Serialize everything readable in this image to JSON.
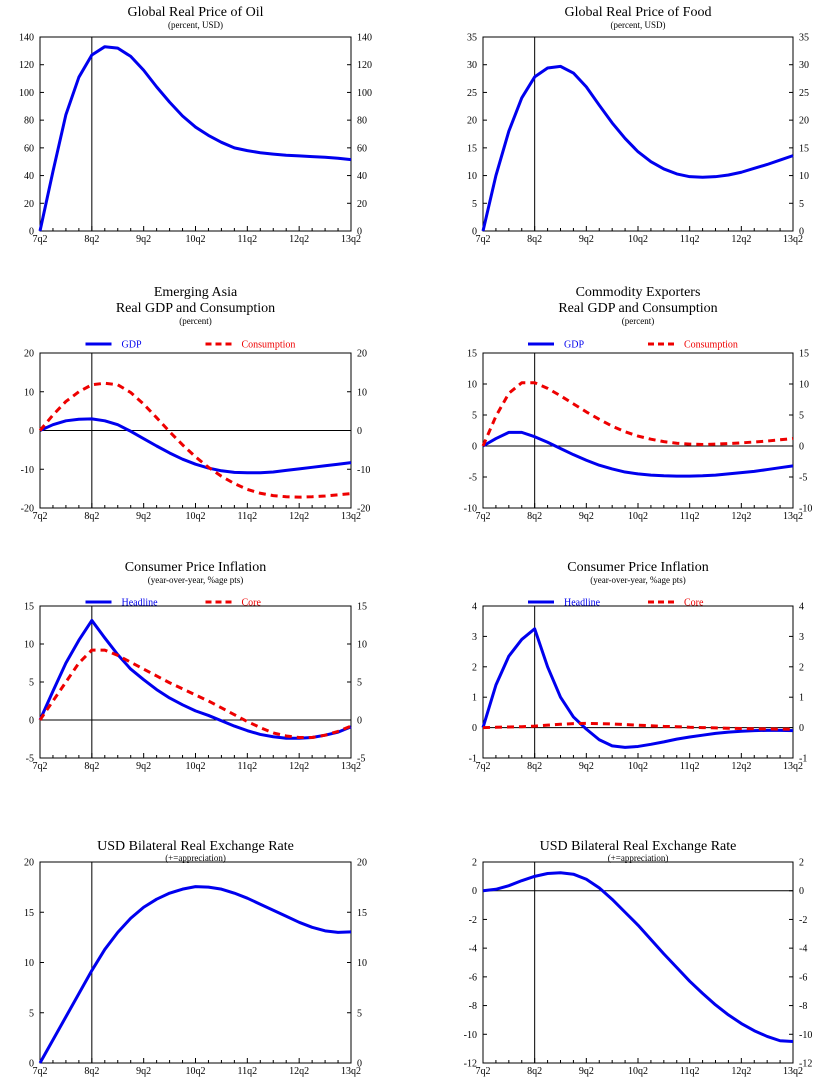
{
  "chart_data": [
    {
      "type": "line",
      "title_lines": [
        "Global Real Price of Oil"
      ],
      "subtitle": "(percent, USD)",
      "ylim": [
        0,
        140
      ],
      "yticks": [
        0,
        20,
        40,
        60,
        80,
        100,
        120,
        140
      ],
      "ytick_labels": [
        "0",
        "20",
        "40",
        "60",
        "80",
        "100",
        "120",
        "140"
      ],
      "xtick_labels": [
        "7q2",
        "8q2",
        "9q2",
        "10q2",
        "11q2",
        "12q2",
        "13q2"
      ],
      "legend": [],
      "series": [
        {
          "color": "#0000ee",
          "dashed": false,
          "values": [
            0,
            43,
            84,
            111,
            127,
            133,
            132,
            126,
            116,
            104,
            93,
            83,
            75,
            69,
            64,
            60,
            58,
            56.5,
            55.5,
            54.7,
            54.2,
            53.7,
            53.2,
            52.5,
            51.5
          ]
        }
      ]
    },
    {
      "type": "line",
      "title_lines": [
        "Global Real Price of Food"
      ],
      "subtitle": "(percent, USD)",
      "ylim": [
        0,
        35
      ],
      "yticks": [
        0,
        5,
        10,
        15,
        20,
        25,
        30,
        35
      ],
      "ytick_labels": [
        "0",
        "5",
        "10",
        "15",
        "20",
        "25",
        "30",
        "35"
      ],
      "xtick_labels": [
        "7q2",
        "8q2",
        "9q2",
        "10q2",
        "11q2",
        "12q2",
        "13q2"
      ],
      "legend": [],
      "series": [
        {
          "color": "#0000ee",
          "dashed": false,
          "values": [
            0,
            10,
            18,
            24,
            27.8,
            29.4,
            29.7,
            28.5,
            26,
            22.7,
            19.5,
            16.7,
            14.3,
            12.5,
            11.2,
            10.3,
            9.8,
            9.7,
            9.8,
            10.1,
            10.6,
            11.3,
            12,
            12.8,
            13.6
          ]
        }
      ]
    },
    {
      "type": "line",
      "title_lines": [
        "Emerging Asia",
        "Real GDP and Consumption"
      ],
      "subtitle": "(percent)",
      "ylim": [
        -20,
        20
      ],
      "yticks": [
        -20,
        -10,
        0,
        10,
        20
      ],
      "ytick_labels": [
        "-20",
        "-10",
        "0",
        "10",
        "20"
      ],
      "xtick_labels": [
        "7q2",
        "8q2",
        "9q2",
        "10q2",
        "11q2",
        "12q2",
        "13q2"
      ],
      "legend": [
        {
          "label": "GDP",
          "color": "#0000ee",
          "dashed": false
        },
        {
          "label": "Consumption",
          "color": "#ee0000",
          "dashed": true
        }
      ],
      "series": [
        {
          "name": "GDP",
          "color": "#0000ee",
          "dashed": false,
          "values": [
            0,
            1.5,
            2.5,
            2.9,
            3,
            2.5,
            1.5,
            -0.2,
            -2.1,
            -4,
            -5.8,
            -7.4,
            -8.7,
            -9.7,
            -10.4,
            -10.8,
            -10.9,
            -10.9,
            -10.7,
            -10.3,
            -9.9,
            -9.5,
            -9.1,
            -8.7,
            -8.3
          ]
        },
        {
          "name": "Consumption",
          "color": "#ee0000",
          "dashed": true,
          "values": [
            0,
            4,
            7.5,
            10,
            11.8,
            12.2,
            11.8,
            9.8,
            6.8,
            3.3,
            -0.3,
            -3.7,
            -6.8,
            -9.5,
            -11.8,
            -13.7,
            -15.2,
            -16.2,
            -16.8,
            -17.1,
            -17.2,
            -17.1,
            -16.9,
            -16.6,
            -16.3
          ]
        }
      ]
    },
    {
      "type": "line",
      "title_lines": [
        "Commodity Exporters",
        "Real GDP and Consumption"
      ],
      "subtitle": "(percent)",
      "ylim": [
        -10,
        15
      ],
      "yticks": [
        -10,
        -5,
        0,
        5,
        10,
        15
      ],
      "ytick_labels": [
        "-10",
        "-5",
        "0",
        "5",
        "10",
        "15"
      ],
      "xtick_labels": [
        "7q2",
        "8q2",
        "9q2",
        "10q2",
        "11q2",
        "12q2",
        "13q2"
      ],
      "legend": [
        {
          "label": "GDP",
          "color": "#0000ee",
          "dashed": false
        },
        {
          "label": "Consumption",
          "color": "#ee0000",
          "dashed": true
        }
      ],
      "series": [
        {
          "name": "GDP",
          "color": "#0000ee",
          "dashed": false,
          "values": [
            0,
            1.2,
            2.2,
            2.2,
            1.5,
            0.6,
            -0.4,
            -1.4,
            -2.3,
            -3.1,
            -3.7,
            -4.2,
            -4.5,
            -4.7,
            -4.8,
            -4.85,
            -4.85,
            -4.8,
            -4.7,
            -4.5,
            -4.3,
            -4.1,
            -3.8,
            -3.5,
            -3.2
          ]
        },
        {
          "name": "Consumption",
          "color": "#ee0000",
          "dashed": true,
          "values": [
            0,
            4.8,
            8.5,
            10.2,
            10.2,
            9.3,
            8.1,
            6.8,
            5.5,
            4.3,
            3.2,
            2.3,
            1.6,
            1.1,
            0.7,
            0.45,
            0.3,
            0.25,
            0.3,
            0.4,
            0.5,
            0.65,
            0.8,
            1.0,
            1.2
          ]
        }
      ]
    },
    {
      "type": "line",
      "title_lines": [
        "Consumer Price Inflation"
      ],
      "subtitle": "(year-over-year, %age pts)",
      "ylim": [
        -5,
        15
      ],
      "yticks": [
        -5,
        0,
        5,
        10,
        15
      ],
      "ytick_labels": [
        "-5",
        "0",
        "5",
        "10",
        "15"
      ],
      "xtick_labels": [
        "7q2",
        "8q2",
        "9q2",
        "10q2",
        "11q2",
        "12q2",
        "13q2"
      ],
      "legend": [
        {
          "label": "Headline",
          "color": "#0000ee",
          "dashed": false
        },
        {
          "label": "Core",
          "color": "#ee0000",
          "dashed": true
        }
      ],
      "series": [
        {
          "name": "Headline",
          "color": "#0000ee",
          "dashed": false,
          "values": [
            0,
            3.8,
            7.5,
            10.5,
            13.1,
            10.8,
            8.6,
            6.7,
            5.3,
            4.0,
            2.9,
            2.0,
            1.2,
            0.6,
            -0.1,
            -0.8,
            -1.4,
            -1.9,
            -2.2,
            -2.4,
            -2.4,
            -2.3,
            -2.0,
            -1.6,
            -0.9
          ]
        },
        {
          "name": "Core",
          "color": "#ee0000",
          "dashed": true,
          "values": [
            0,
            2.5,
            5,
            7.5,
            9.2,
            9.2,
            8.5,
            7.6,
            6.7,
            5.8,
            4.9,
            4.1,
            3.3,
            2.5,
            1.6,
            0.7,
            -0.2,
            -1.0,
            -1.7,
            -2.1,
            -2.3,
            -2.3,
            -2.0,
            -1.5,
            -0.8
          ]
        }
      ]
    },
    {
      "type": "line",
      "title_lines": [
        "Consumer Price Inflation"
      ],
      "subtitle": "(year-over-year, %age pts)",
      "ylim": [
        -1,
        4
      ],
      "yticks": [
        -1,
        0,
        1,
        2,
        3,
        4
      ],
      "ytick_labels": [
        "-1",
        "0",
        "1",
        "2",
        "3",
        "4"
      ],
      "xtick_labels": [
        "7q2",
        "8q2",
        "9q2",
        "10q2",
        "11q2",
        "12q2",
        "13q2"
      ],
      "legend": [
        {
          "label": "Headline",
          "color": "#0000ee",
          "dashed": false
        },
        {
          "label": "Core",
          "color": "#ee0000",
          "dashed": true
        }
      ],
      "series": [
        {
          "name": "Headline",
          "color": "#0000ee",
          "dashed": false,
          "values": [
            0,
            1.4,
            2.35,
            2.9,
            3.25,
            2.0,
            1.0,
            0.35,
            -0.05,
            -0.4,
            -0.6,
            -0.65,
            -0.62,
            -0.55,
            -0.47,
            -0.38,
            -0.31,
            -0.25,
            -0.19,
            -0.15,
            -0.12,
            -0.1,
            -0.09,
            -0.09,
            -0.1
          ]
        },
        {
          "name": "Core",
          "color": "#ee0000",
          "dashed": true,
          "values": [
            0,
            0.01,
            0.02,
            0.03,
            0.05,
            0.08,
            0.11,
            0.13,
            0.14,
            0.13,
            0.12,
            0.1,
            0.08,
            0.06,
            0.04,
            0.03,
            0.01,
            0.0,
            -0.01,
            -0.02,
            -0.03,
            -0.04,
            -0.04,
            -0.05,
            -0.05
          ]
        }
      ]
    },
    {
      "type": "line",
      "title_lines": [
        "USD Bilateral Real Exchange Rate"
      ],
      "subtitle": "(+=appreciation)",
      "ylim": [
        0,
        20
      ],
      "yticks": [
        0,
        5,
        10,
        15,
        20
      ],
      "ytick_labels": [
        "0",
        "5",
        "10",
        "15",
        "20"
      ],
      "xtick_labels": [
        "7q2",
        "8q2",
        "9q2",
        "10q2",
        "11q2",
        "12q2",
        "13q2"
      ],
      "legend": [],
      "series": [
        {
          "color": "#0000ee",
          "dashed": false,
          "values": [
            0,
            2.3,
            4.6,
            6.9,
            9.2,
            11.3,
            13.0,
            14.4,
            15.5,
            16.3,
            16.9,
            17.3,
            17.55,
            17.5,
            17.3,
            16.9,
            16.4,
            15.8,
            15.2,
            14.6,
            14.0,
            13.5,
            13.15,
            13.0,
            13.05
          ]
        }
      ]
    },
    {
      "type": "line",
      "title_lines": [
        "USD Bilateral Real Exchange Rate"
      ],
      "subtitle": "(+=appreciation)",
      "ylim": [
        -12,
        2
      ],
      "yticks": [
        -12,
        -10,
        -8,
        -6,
        -4,
        -2,
        0,
        2
      ],
      "ytick_labels": [
        "-12",
        "-10",
        "-8",
        "-6",
        "-4",
        "-2",
        "0",
        "2"
      ],
      "xtick_labels": [
        "7q2",
        "8q2",
        "9q2",
        "10q2",
        "11q2",
        "12q2",
        "13q2"
      ],
      "legend": [],
      "series": [
        {
          "color": "#0000ee",
          "dashed": false,
          "values": [
            0,
            0.1,
            0.35,
            0.7,
            1.0,
            1.2,
            1.25,
            1.15,
            0.8,
            0.2,
            -0.6,
            -1.5,
            -2.4,
            -3.4,
            -4.4,
            -5.35,
            -6.3,
            -7.15,
            -7.95,
            -8.65,
            -9.25,
            -9.75,
            -10.15,
            -10.45,
            -10.5
          ]
        }
      ]
    }
  ]
}
